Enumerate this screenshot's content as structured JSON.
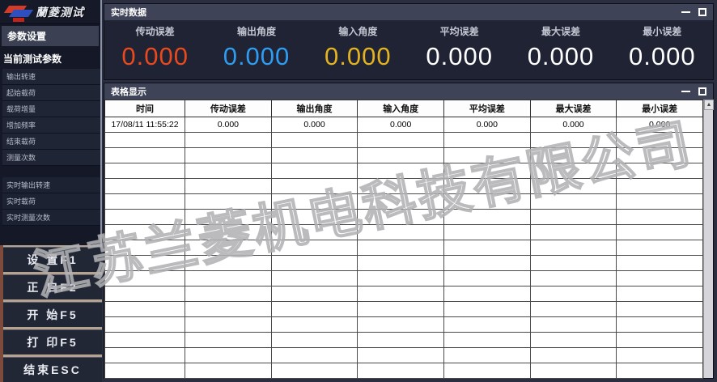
{
  "app": {
    "logo_text": "蘭菱测试",
    "watermark": "江苏兰菱机电科技有限公司"
  },
  "sidebar": {
    "settings_header": "参数设置",
    "params_header": "当前测试参数",
    "param_items": [
      "输出转速",
      "起始载荷",
      "载荷增量",
      "增加频率",
      "结束载荷",
      "测量次数"
    ],
    "realtime_items": [
      "实时输出转速",
      "实时载荷",
      "实时测量次数"
    ],
    "buttons": [
      {
        "label": "设 置F1"
      },
      {
        "label": "正 启F2"
      },
      {
        "label": "开 始F5"
      },
      {
        "label": "打 印F5"
      },
      {
        "label": "结束ESC"
      }
    ]
  },
  "realtime_panel": {
    "title": "实时数据",
    "metrics": [
      {
        "label": "传动误差",
        "value": "0.000",
        "color": "#e8491d"
      },
      {
        "label": "输出角度",
        "value": "0.000",
        "color": "#2e9df0"
      },
      {
        "label": "输入角度",
        "value": "0.000",
        "color": "#e3b320"
      },
      {
        "label": "平均误差",
        "value": "0.000",
        "color": "#ffffff"
      },
      {
        "label": "最大误差",
        "value": "0.000",
        "color": "#ffffff"
      },
      {
        "label": "最小误差",
        "value": "0.000",
        "color": "#ffffff"
      }
    ]
  },
  "table_panel": {
    "title": "表格显示",
    "columns": [
      "时间",
      "传动误差",
      "输出角度",
      "输入角度",
      "平均误差",
      "最大误差",
      "最小误差"
    ],
    "rows": [
      [
        "17/08/11 11:55:22",
        "0.000",
        "0.000",
        "0.000",
        "0.000",
        "0.000",
        "0.000"
      ]
    ],
    "empty_row_count": 16,
    "scroll_up_glyph": "▲"
  }
}
